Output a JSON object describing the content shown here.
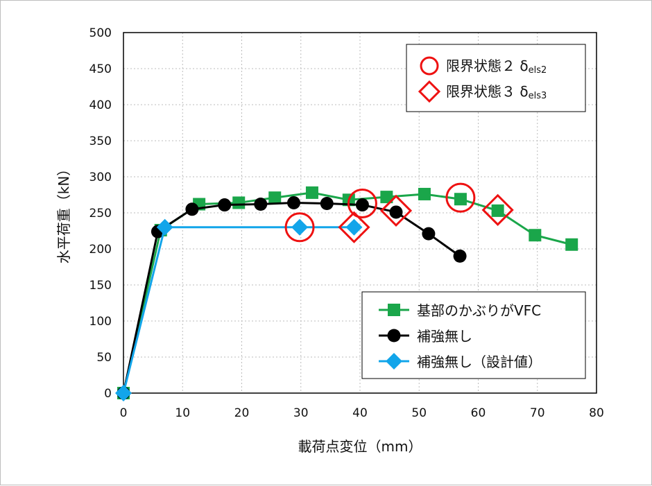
{
  "chart_data": {
    "type": "line",
    "xlabel": "載荷点変位（mm）",
    "ylabel": "水平荷重（kN）",
    "xlim": [
      0,
      80
    ],
    "ylim": [
      0,
      500
    ],
    "xticks": [
      0,
      10,
      20,
      30,
      40,
      50,
      60,
      70,
      80
    ],
    "yticks": [
      0,
      50,
      100,
      150,
      200,
      250,
      300,
      350,
      400,
      450,
      500
    ],
    "grid": true,
    "series": [
      {
        "name": "基部のかぶりがVFC",
        "color": "#1aa64a",
        "marker": "square",
        "x": [
          0,
          6.3,
          12.8,
          19.5,
          25.6,
          31.9,
          38.1,
          44.5,
          50.9,
          57.0,
          63.3,
          69.6,
          75.8
        ],
        "y": [
          0,
          226,
          262,
          264,
          271,
          278,
          268,
          272,
          276,
          269,
          253,
          219,
          206
        ]
      },
      {
        "name": "補強無し",
        "color": "#000000",
        "marker": "circle",
        "x": [
          0,
          5.8,
          11.6,
          17.1,
          23.2,
          28.8,
          34.4,
          40.4,
          46.1,
          51.6,
          56.9
        ],
        "y": [
          0,
          224,
          255,
          261,
          262,
          264,
          263,
          261,
          251,
          221,
          190
        ]
      },
      {
        "name": "補強無し（設計値）",
        "color": "#12a5ea",
        "marker": "diamond",
        "x": [
          0,
          7.0,
          29.8,
          39.0
        ],
        "y": [
          0,
          230,
          230,
          230
        ]
      }
    ],
    "limit_markers": {
      "color": "#ee1111",
      "state2": {
        "label": "限界状態２ δ",
        "sub": "els2",
        "marker": "circle",
        "points": [
          {
            "x": 29.8,
            "y": 230
          },
          {
            "x": 40.4,
            "y": 263
          },
          {
            "x": 57.0,
            "y": 271
          }
        ]
      },
      "state3": {
        "label": "限界状態３ δ",
        "sub": "els3",
        "marker": "diamond",
        "points": [
          {
            "x": 39.0,
            "y": 230
          },
          {
            "x": 46.1,
            "y": 253
          },
          {
            "x": 63.3,
            "y": 254
          }
        ]
      }
    },
    "legend_placement": [
      "top-right",
      "bottom-right"
    ]
  }
}
